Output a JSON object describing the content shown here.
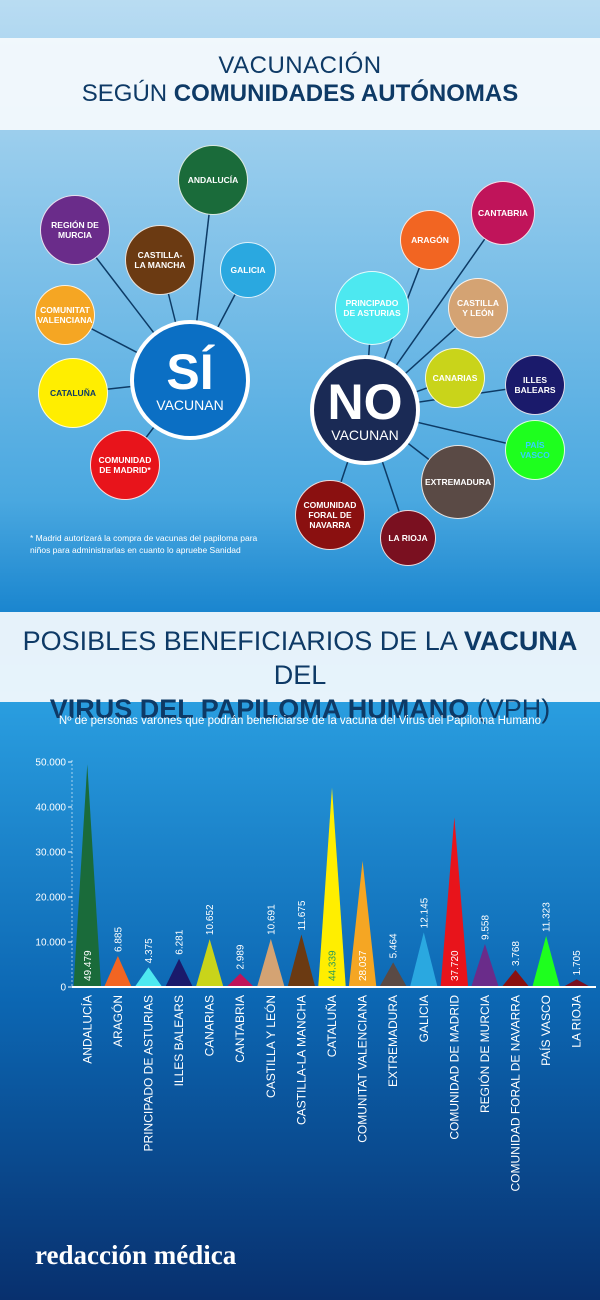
{
  "header": {
    "line1": "VACUNACIÓN",
    "line2_normal": "SEGÚN",
    "line2_bold": "COMUNIDADES AUTÓNOMAS"
  },
  "yes_group": {
    "hub": "SÍ",
    "hub_sub": "VACUNAN",
    "color": "#0b6fc4",
    "nodes": [
      {
        "label": "ANDALUCÍA",
        "color": "#1a6b3a"
      },
      {
        "label": "REGIÓN DE MURCIA",
        "color": "#6a2c8a"
      },
      {
        "label": "CASTILLA-LA MANCHA",
        "color": "#6b3a12"
      },
      {
        "label": "GALICIA",
        "color": "#2aa8e0"
      },
      {
        "label": "COMUNITAT VALENCIANA",
        "color": "#f5a623"
      },
      {
        "label": "CATALUÑA",
        "color": "#ffee00"
      },
      {
        "label": "COMUNIDAD DE MADRID*",
        "color": "#e8141b"
      }
    ],
    "note": "* Madrid autorizará la compra de vacunas del papiloma para niños para administrarlas en cuanto lo apruebe Sanidad"
  },
  "no_group": {
    "hub": "NO",
    "hub_sub": "VACUNAN",
    "color": "#1a2a55",
    "nodes": [
      {
        "label": "CANTABRIA",
        "color": "#c0145a"
      },
      {
        "label": "ARAGÓN",
        "color": "#f26522"
      },
      {
        "label": "PRINCIPADO DE ASTURIAS",
        "color": "#4de8f0"
      },
      {
        "label": "CASTILLA Y LEÓN",
        "color": "#d4a373"
      },
      {
        "label": "CANARIAS",
        "color": "#c9d41a"
      },
      {
        "label": "ILLES BALEARS",
        "color": "#1a1a6b"
      },
      {
        "label": "PAÍS VASCO",
        "color": "#1eff1e"
      },
      {
        "label": "EXTREMADURA",
        "color": "#5a4a45"
      },
      {
        "label": "LA RIOJA",
        "color": "#7a1020"
      },
      {
        "label": "COMUNIDAD FORAL DE NAVARRA",
        "color": "#8a1010"
      }
    ]
  },
  "section2": {
    "line1_a": "POSIBLES BENEFICIARIOS DE LA",
    "line1_b": "VACUNA",
    "line1_c": "DEL",
    "line2_a": "VIRUS DEL PAPILOMA HUMANO",
    "line2_b": "(VPH)"
  },
  "chart_data": {
    "type": "bar",
    "subtitle": "Nº de personas varones que podrán beneficiarse de la vacuna del Virus del Papiloma Humano",
    "categories": [
      "ANDALUCÍA",
      "ARAGÓN",
      "PRINCIPADO DE ASTURIAS",
      "ILLES BALEARS",
      "CANARIAS",
      "CANTABRIA",
      "CASTILLA Y LEÓN",
      "CASTILLA-LA MANCHA",
      "CATALUÑA",
      "COMUNITAT VALENCIANA",
      "EXTREMADURA",
      "GALICIA",
      "COMUNIDAD DE MADRID",
      "REGIÓN DE MURCIA",
      "COMUNIDAD FORAL DE NAVARRA",
      "PAÍS VASCO",
      "LA RIOJA"
    ],
    "values": [
      49479,
      6885,
      4375,
      6281,
      10652,
      2989,
      10691,
      11675,
      44339,
      28037,
      5464,
      12145,
      37720,
      9558,
      3768,
      11323,
      1705
    ],
    "value_labels": [
      "49.479",
      "6.885",
      "4.375",
      "6.281",
      "10.652",
      "2.989",
      "10.691",
      "11.675",
      "44.339",
      "28.037",
      "5.464",
      "12.145",
      "37.720",
      "9.558",
      "3.768",
      "11.323",
      "1.705"
    ],
    "colors": [
      "#1a6b3a",
      "#f26522",
      "#4de8f0",
      "#1a1a6b",
      "#c9d41a",
      "#c0145a",
      "#d4a373",
      "#6b3a12",
      "#ffee00",
      "#f5a623",
      "#5a4a45",
      "#2aa8e0",
      "#e8141b",
      "#6a2c8a",
      "#8a1010",
      "#1eff1e",
      "#7a1020"
    ],
    "ylim": [
      0,
      50000
    ],
    "yticks": [
      0,
      {
        "value": 10000,
        "label": "10.000"
      },
      {
        "value": 20000,
        "label": "20.000"
      },
      {
        "value": 30000,
        "label": "30.000"
      },
      {
        "value": 40000,
        "label": "40.000"
      },
      {
        "value": 50000,
        "label": "50.000"
      }
    ],
    "grid": false
  },
  "footer": "redacción médica"
}
